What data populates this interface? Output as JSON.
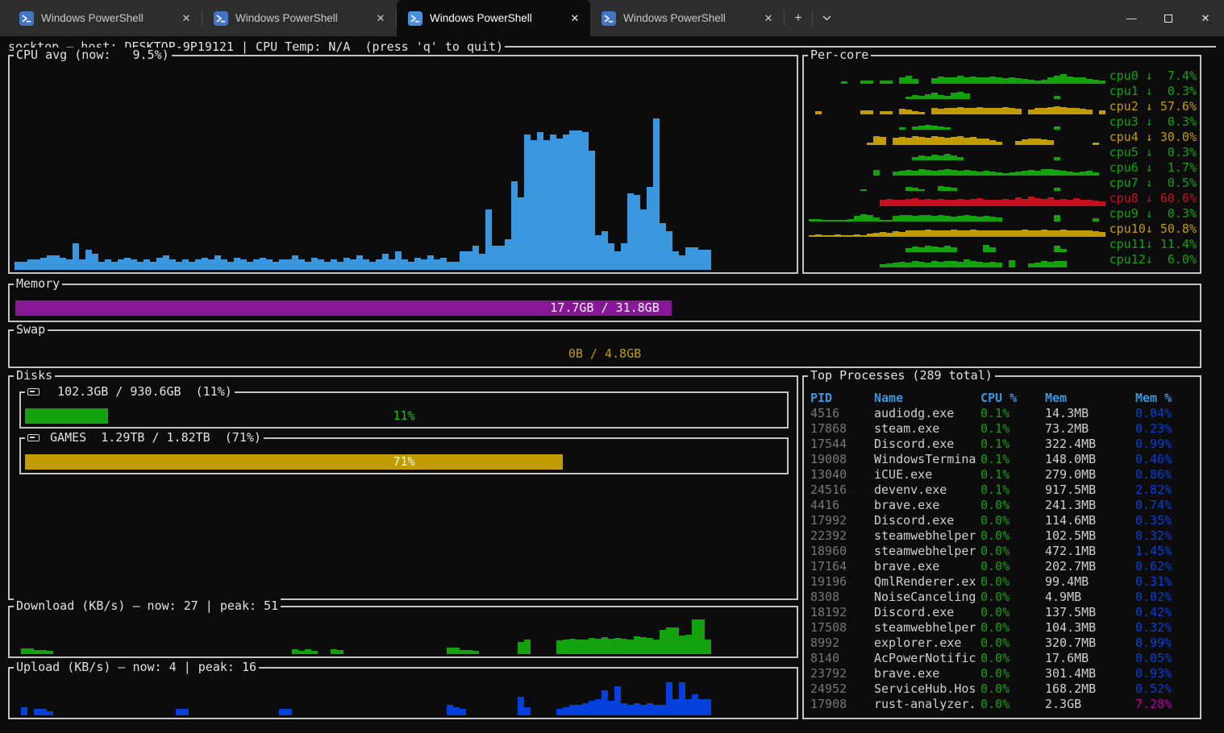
{
  "colors": {
    "fg": "#d6d6d6",
    "gray": "#767676",
    "green": "#13A10E",
    "bright_green": "#16C60C",
    "yellow": "#C19C00",
    "red": "#C50F1F",
    "cyan": "#3A96DD",
    "blue": "#0540DC",
    "magenta": "#B4009E",
    "purple": "#881798",
    "table_header": "#3A96DD",
    "white": "#f2f2f2"
  },
  "titlebar": {
    "tabs": [
      {
        "label": "Windows PowerShell",
        "active": false
      },
      {
        "label": "Windows PowerShell",
        "active": false
      },
      {
        "label": "Windows PowerShell",
        "active": true
      },
      {
        "label": "Windows PowerShell",
        "active": false
      }
    ],
    "close_tab_glyph": "✕",
    "new_tab_glyph": "+",
    "minimize_glyph": "—",
    "close_glyph": "✕"
  },
  "header": {
    "text": "socktop — host: DESKTOP-9P19121 | CPU Temp: N/A  (press 'q' to quit)"
  },
  "cpu_avg": {
    "title": "CPU avg (now:   9.5%)",
    "now_pct": "9.5%"
  },
  "per_core": {
    "title": "Per-core",
    "cores": [
      {
        "label": "cpu0 ↓  7.4%",
        "color": "green",
        "spark": [
          0,
          0,
          0,
          0,
          0,
          15,
          0,
          0,
          25,
          25,
          0,
          25,
          25,
          0,
          45,
          60,
          35,
          0,
          0,
          40,
          55,
          45,
          50,
          60,
          50,
          55,
          50,
          45,
          55,
          45,
          40,
          45,
          40,
          35,
          30,
          25,
          30,
          45,
          60,
          70,
          55,
          50,
          45,
          35,
          30,
          25
        ]
      },
      {
        "label": "cpu1 ↓  0.3%",
        "color": "green",
        "spark": [
          0,
          0,
          0,
          0,
          0,
          0,
          0,
          0,
          0,
          0,
          0,
          0,
          0,
          0,
          0,
          20,
          30,
          25,
          35,
          45,
          30,
          25,
          45,
          55,
          40,
          0,
          0,
          0,
          0,
          0,
          0,
          0,
          0,
          0,
          0,
          0,
          0,
          0,
          25,
          0,
          0,
          0,
          0,
          0,
          0,
          0
        ]
      },
      {
        "label": "cpu2 ↓ 57.6%",
        "color": "yellow",
        "spark": [
          0,
          25,
          0,
          0,
          0,
          0,
          0,
          0,
          30,
          30,
          0,
          25,
          25,
          0,
          40,
          35,
          25,
          20,
          0,
          45,
          40,
          50,
          45,
          55,
          50,
          45,
          55,
          50,
          45,
          50,
          55,
          45,
          40,
          0,
          35,
          45,
          50,
          55,
          60,
          55,
          50,
          45,
          40,
          35,
          0,
          30
        ]
      },
      {
        "label": "cpu3 ↓  0.3%",
        "color": "green",
        "spark": [
          0,
          0,
          0,
          0,
          0,
          0,
          0,
          0,
          0,
          0,
          0,
          0,
          0,
          0,
          20,
          0,
          25,
          30,
          35,
          30,
          25,
          20,
          0,
          0,
          0,
          0,
          0,
          0,
          0,
          0,
          0,
          0,
          0,
          0,
          0,
          0,
          0,
          0,
          25,
          0,
          0,
          0,
          0,
          0,
          0,
          0
        ]
      },
      {
        "label": "cpu4 ↓ 30.0%",
        "color": "yellow",
        "spark": [
          0,
          0,
          0,
          0,
          0,
          0,
          0,
          0,
          0,
          20,
          65,
          60,
          0,
          55,
          60,
          55,
          65,
          60,
          55,
          65,
          60,
          55,
          60,
          65,
          55,
          60,
          50,
          45,
          35,
          25,
          0,
          0,
          30,
          40,
          45,
          50,
          40,
          35,
          0,
          0,
          0,
          0,
          0,
          0,
          20,
          0
        ]
      },
      {
        "label": "cpu5 ↓  0.3%",
        "color": "green",
        "spark": [
          0,
          0,
          0,
          0,
          0,
          0,
          0,
          0,
          0,
          0,
          0,
          0,
          0,
          0,
          0,
          0,
          25,
          35,
          30,
          40,
          35,
          45,
          35,
          25,
          0,
          0,
          0,
          0,
          0,
          0,
          0,
          0,
          0,
          0,
          0,
          0,
          0,
          0,
          25,
          0,
          0,
          0,
          0,
          0,
          0,
          0
        ]
      },
      {
        "label": "cpu6 ↓  1.7%",
        "color": "green",
        "spark": [
          0,
          0,
          0,
          0,
          0,
          0,
          0,
          0,
          0,
          0,
          40,
          0,
          0,
          30,
          35,
          40,
          35,
          45,
          40,
          35,
          40,
          45,
          40,
          35,
          40,
          35,
          30,
          35,
          30,
          25,
          20,
          25,
          30,
          35,
          40,
          35,
          45,
          50,
          40,
          35,
          30,
          25,
          30,
          35,
          25,
          0
        ]
      },
      {
        "label": "cpu7 ↓  0.5%",
        "color": "green",
        "spark": [
          0,
          0,
          0,
          0,
          0,
          0,
          0,
          0,
          10,
          0,
          0,
          0,
          0,
          0,
          0,
          30,
          25,
          10,
          0,
          0,
          35,
          30,
          25,
          0,
          0,
          0,
          0,
          0,
          0,
          0,
          0,
          0,
          0,
          0,
          0,
          0,
          0,
          0,
          25,
          0,
          0,
          0,
          0,
          0,
          0,
          0
        ]
      },
      {
        "label": "cpu8 ↓ 60.6%",
        "color": "red",
        "spark": [
          0,
          0,
          0,
          0,
          0,
          0,
          0,
          0,
          0,
          0,
          0,
          50,
          55,
          50,
          48,
          52,
          56,
          50,
          52,
          48,
          55,
          50,
          48,
          52,
          50,
          55,
          60,
          50,
          45,
          50,
          55,
          48,
          65,
          55,
          70,
          60,
          55,
          65,
          50,
          55,
          45,
          60,
          50,
          45,
          40,
          35
        ]
      },
      {
        "label": "cpu9 ↓  0.3%",
        "color": "green",
        "spark": [
          15,
          15,
          12,
          12,
          12,
          12,
          15,
          40,
          55,
          45,
          30,
          12,
          12,
          40,
          50,
          45,
          40,
          50,
          45,
          40,
          45,
          40,
          35,
          40,
          45,
          40,
          35,
          40,
          35,
          30,
          0,
          0,
          0,
          0,
          0,
          0,
          0,
          0,
          50,
          0,
          0,
          0,
          0,
          0,
          25,
          0
        ]
      },
      {
        "label": "cpu10↓ 50.8%",
        "color": "yellow",
        "spark": [
          12,
          15,
          12,
          12,
          15,
          12,
          12,
          15,
          12,
          25,
          30,
          35,
          30,
          40,
          35,
          45,
          50,
          45,
          55,
          50,
          45,
          50,
          55,
          50,
          45,
          55,
          50,
          45,
          50,
          45,
          50,
          45,
          50,
          55,
          45,
          50,
          55,
          50,
          45,
          55,
          50,
          45,
          50,
          45,
          40,
          35
        ]
      },
      {
        "label": "cpu11↓ 11.4%",
        "color": "green",
        "spark": [
          0,
          0,
          0,
          0,
          0,
          0,
          0,
          0,
          0,
          0,
          0,
          0,
          0,
          0,
          0,
          30,
          40,
          35,
          45,
          40,
          35,
          45,
          35,
          0,
          0,
          0,
          0,
          55,
          35,
          0,
          0,
          0,
          0,
          0,
          0,
          0,
          0,
          0,
          50,
          25,
          0,
          0,
          0,
          0,
          0,
          0
        ]
      },
      {
        "label": "cpu12↓  6.0%",
        "color": "green",
        "spark": [
          0,
          0,
          0,
          0,
          0,
          0,
          0,
          0,
          0,
          0,
          0,
          25,
          30,
          35,
          40,
          35,
          45,
          40,
          35,
          45,
          40,
          50,
          45,
          40,
          60,
          45,
          40,
          35,
          40,
          35,
          0,
          55,
          0,
          0,
          30,
          35,
          45,
          40,
          50,
          45,
          0,
          0,
          0,
          0,
          0,
          0
        ]
      }
    ]
  },
  "memory": {
    "title": "Memory",
    "label": "17.7GB / 31.8GB",
    "pct": 55.7
  },
  "swap": {
    "title": "Swap",
    "label": "0B / 4.8GB",
    "pct": 0
  },
  "disks": {
    "title": "Disks",
    "items": [
      {
        "title": "  102.3GB / 930.6GB  (11%)",
        "pct": 11,
        "fill": "green",
        "label": "11%",
        "label_color": "bright_green"
      },
      {
        "title": " GAMES  1.29TB / 1.82TB  (71%)",
        "pct": 71,
        "fill": "yellow",
        "label": "71%",
        "label_color": "white"
      }
    ]
  },
  "download": {
    "title": "Download (KB/s) — now: 27 | peak: 51",
    "now": 27,
    "peak": 51,
    "ymax": 55,
    "color": "green",
    "values": [
      0,
      8,
      8,
      6,
      6,
      5,
      0,
      0,
      0,
      0,
      0,
      0,
      0,
      0,
      0,
      0,
      0,
      0,
      0,
      0,
      0,
      0,
      0,
      0,
      0,
      0,
      0,
      0,
      0,
      0,
      0,
      0,
      0,
      0,
      0,
      0,
      0,
      0,
      0,
      0,
      0,
      0,
      0,
      7,
      5,
      7,
      5,
      0,
      0,
      7,
      6,
      0,
      0,
      0,
      0,
      0,
      0,
      0,
      0,
      0,
      0,
      0,
      0,
      0,
      0,
      0,
      0,
      9,
      9,
      6,
      6,
      5,
      0,
      0,
      0,
      0,
      0,
      0,
      18,
      22,
      0,
      0,
      0,
      0,
      20,
      21,
      23,
      21,
      22,
      24,
      23,
      25,
      23,
      24,
      23,
      21,
      26,
      25,
      24,
      22,
      36,
      40,
      40,
      27,
      29,
      51,
      51,
      21,
      0,
      0,
      0,
      0,
      0,
      0,
      0,
      0,
      0,
      0,
      0,
      0
    ]
  },
  "upload": {
    "title": "Upload (KB/s) — now: 4 | peak: 16",
    "now": 4,
    "peak": 16,
    "ymax": 18,
    "color": "blue",
    "values": [
      0,
      4,
      0,
      3,
      3,
      2,
      0,
      0,
      0,
      0,
      0,
      0,
      0,
      0,
      0,
      0,
      0,
      0,
      0,
      0,
      0,
      0,
      0,
      0,
      0,
      3,
      3,
      0,
      0,
      0,
      0,
      0,
      0,
      0,
      0,
      0,
      0,
      0,
      0,
      0,
      0,
      3,
      3,
      0,
      0,
      0,
      0,
      0,
      0,
      0,
      0,
      0,
      0,
      0,
      0,
      0,
      0,
      0,
      0,
      0,
      0,
      0,
      0,
      0,
      0,
      0,
      0,
      5,
      4,
      3,
      0,
      0,
      0,
      0,
      0,
      0,
      0,
      0,
      9,
      4,
      0,
      0,
      0,
      0,
      3,
      4,
      5,
      5,
      6,
      7,
      8,
      12,
      7,
      14,
      6,
      5,
      6,
      5,
      6,
      5,
      5,
      16,
      8,
      16,
      8,
      10,
      8,
      8,
      0,
      0,
      0,
      0,
      0,
      0,
      0,
      0,
      0,
      0,
      0,
      0
    ]
  },
  "cpu_chart": {
    "ymax": 100,
    "values": [
      4,
      4,
      5,
      5,
      6,
      7,
      7,
      6,
      5,
      13,
      5,
      10,
      8,
      4,
      5,
      4,
      5,
      6,
      5,
      4,
      5,
      4,
      6,
      7,
      5,
      4,
      5,
      4,
      5,
      6,
      5,
      7,
      5,
      4,
      6,
      5,
      4,
      5,
      6,
      5,
      4,
      5,
      5,
      7,
      5,
      4,
      6,
      5,
      4,
      5,
      4,
      6,
      5,
      7,
      5,
      4,
      5,
      8,
      5,
      9,
      5,
      4,
      6,
      5,
      7,
      5,
      6,
      4,
      4,
      9,
      9,
      12,
      8,
      30,
      12,
      12,
      15,
      44,
      36,
      67,
      64,
      68,
      64,
      67,
      65,
      67,
      69,
      69,
      68,
      59,
      17,
      19,
      13,
      9,
      13,
      38,
      37,
      30,
      41,
      75,
      23,
      19,
      9,
      7,
      11,
      11,
      10,
      10
    ]
  },
  "processes": {
    "title": "Top Processes (289 total)",
    "headers": {
      "pid": "PID",
      "name": "Name",
      "cpu": "CPU %",
      "mem": "Mem",
      "mem_pct": "Mem %"
    },
    "rows": [
      {
        "pid": "4516",
        "name": "audiodg.exe",
        "cpu": "0.1%",
        "mem": "14.3MB",
        "mem_pct": "0.04%",
        "mem_pct_color": "blue"
      },
      {
        "pid": "17868",
        "name": "steam.exe",
        "cpu": "0.1%",
        "mem": "73.2MB",
        "mem_pct": "0.23%",
        "mem_pct_color": "blue"
      },
      {
        "pid": "17544",
        "name": "Discord.exe",
        "cpu": "0.1%",
        "mem": "322.4MB",
        "mem_pct": "0.99%",
        "mem_pct_color": "blue"
      },
      {
        "pid": "19008",
        "name": "WindowsTermina",
        "cpu": "0.1%",
        "mem": "148.0MB",
        "mem_pct": "0.46%",
        "mem_pct_color": "blue"
      },
      {
        "pid": "13040",
        "name": "iCUE.exe",
        "cpu": "0.1%",
        "mem": "279.0MB",
        "mem_pct": "0.86%",
        "mem_pct_color": "blue"
      },
      {
        "pid": "24516",
        "name": "devenv.exe",
        "cpu": "0.1%",
        "mem": "917.5MB",
        "mem_pct": "2.82%",
        "mem_pct_color": "blue"
      },
      {
        "pid": "4416",
        "name": "brave.exe",
        "cpu": "0.0%",
        "mem": "241.3MB",
        "mem_pct": "0.74%",
        "mem_pct_color": "blue"
      },
      {
        "pid": "17992",
        "name": "Discord.exe",
        "cpu": "0.0%",
        "mem": "114.6MB",
        "mem_pct": "0.35%",
        "mem_pct_color": "blue"
      },
      {
        "pid": "22392",
        "name": "steamwebhelper",
        "cpu": "0.0%",
        "mem": "102.5MB",
        "mem_pct": "0.32%",
        "mem_pct_color": "blue"
      },
      {
        "pid": "18960",
        "name": "steamwebhelper",
        "cpu": "0.0%",
        "mem": "472.1MB",
        "mem_pct": "1.45%",
        "mem_pct_color": "blue"
      },
      {
        "pid": "17164",
        "name": "brave.exe",
        "cpu": "0.0%",
        "mem": "202.7MB",
        "mem_pct": "0.62%",
        "mem_pct_color": "blue"
      },
      {
        "pid": "19196",
        "name": "QmlRenderer.ex",
        "cpu": "0.0%",
        "mem": "99.4MB",
        "mem_pct": "0.31%",
        "mem_pct_color": "blue"
      },
      {
        "pid": "8308",
        "name": "NoiseCanceling",
        "cpu": "0.0%",
        "mem": "4.9MB",
        "mem_pct": "0.02%",
        "mem_pct_color": "blue"
      },
      {
        "pid": "18192",
        "name": "Discord.exe",
        "cpu": "0.0%",
        "mem": "137.5MB",
        "mem_pct": "0.42%",
        "mem_pct_color": "blue"
      },
      {
        "pid": "17508",
        "name": "steamwebhelper",
        "cpu": "0.0%",
        "mem": "104.3MB",
        "mem_pct": "0.32%",
        "mem_pct_color": "blue"
      },
      {
        "pid": "8992",
        "name": "explorer.exe",
        "cpu": "0.0%",
        "mem": "320.7MB",
        "mem_pct": "0.99%",
        "mem_pct_color": "blue"
      },
      {
        "pid": "8140",
        "name": "AcPowerNotific",
        "cpu": "0.0%",
        "mem": "17.6MB",
        "mem_pct": "0.05%",
        "mem_pct_color": "blue"
      },
      {
        "pid": "23792",
        "name": "brave.exe",
        "cpu": "0.0%",
        "mem": "301.4MB",
        "mem_pct": "0.93%",
        "mem_pct_color": "blue"
      },
      {
        "pid": "24952",
        "name": "ServiceHub.Hos",
        "cpu": "0.0%",
        "mem": "168.2MB",
        "mem_pct": "0.52%",
        "mem_pct_color": "blue"
      },
      {
        "pid": "17908",
        "name": "rust-analyzer.",
        "cpu": "0.0%",
        "mem": "2.3GB",
        "mem_pct": "7.28%",
        "mem_pct_color": "magenta"
      }
    ]
  }
}
